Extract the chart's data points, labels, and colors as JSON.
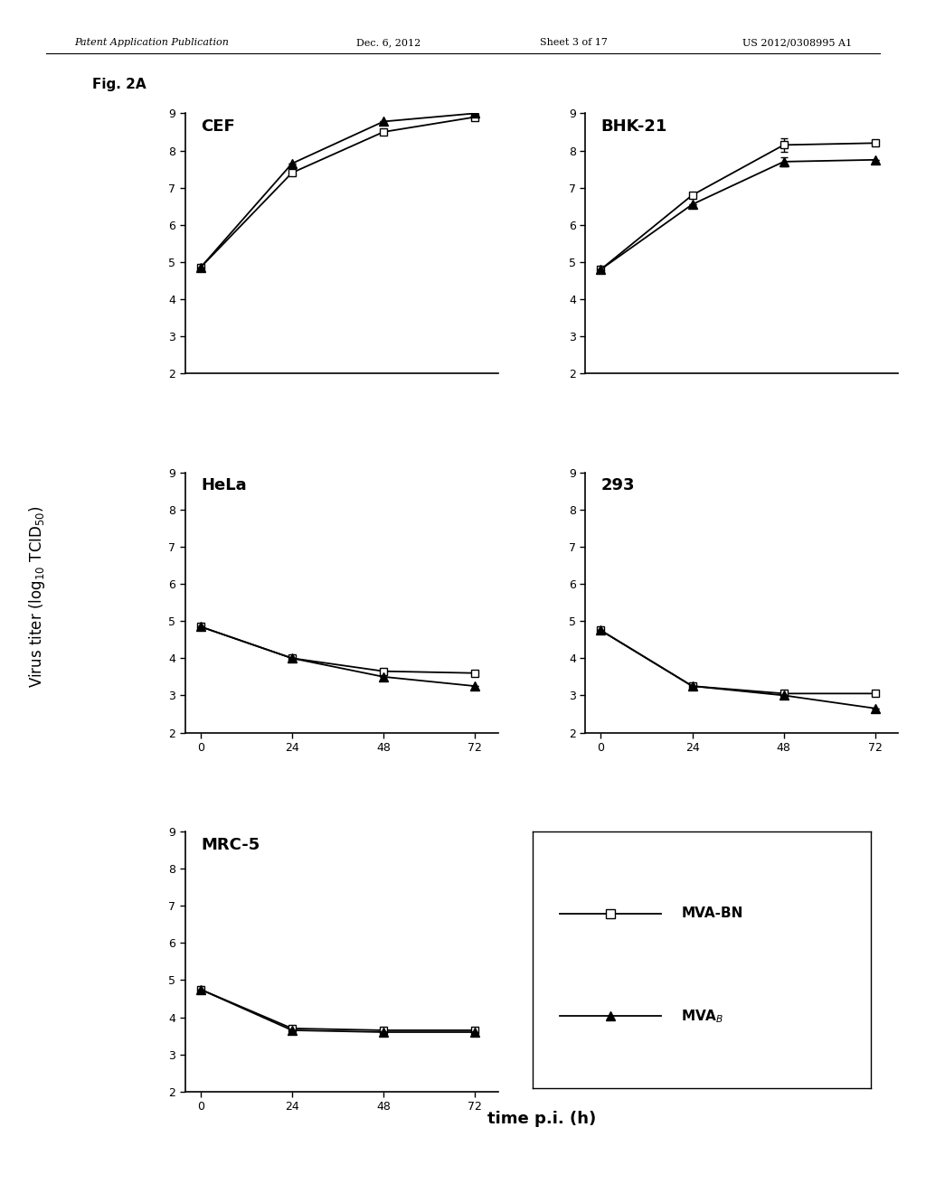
{
  "fig_label": "Fig. 2A",
  "xlabel": "time p.i. (h)",
  "ylabel_line1": "Virus titer (log",
  "ylabel_sub": "10",
  "ylabel_line2": " TCID",
  "ylabel_sub2": "50",
  "ylabel_line3": ")",
  "x": [
    0,
    24,
    48,
    72
  ],
  "ylim": [
    2,
    9
  ],
  "yticks": [
    2,
    3,
    4,
    5,
    6,
    7,
    8,
    9
  ],
  "xticks": [
    0,
    24,
    48,
    72
  ],
  "panels": [
    {
      "title": "CEF",
      "mva_bn": [
        4.85,
        7.4,
        8.5,
        8.9
      ],
      "mva_b": [
        4.85,
        7.65,
        8.78,
        9.0
      ],
      "mva_bn_err": [
        0.0,
        0.0,
        0.0,
        0.0
      ],
      "mva_b_err": [
        0.0,
        0.0,
        0.0,
        0.0
      ]
    },
    {
      "title": "BHK-21",
      "mva_bn": [
        4.8,
        6.8,
        8.15,
        8.2
      ],
      "mva_b": [
        4.8,
        6.55,
        7.7,
        7.75
      ],
      "mva_bn_err": [
        0.0,
        0.0,
        0.18,
        0.0
      ],
      "mva_b_err": [
        0.0,
        0.0,
        0.12,
        0.0
      ]
    },
    {
      "title": "HeLa",
      "mva_bn": [
        4.85,
        4.0,
        3.65,
        3.6
      ],
      "mva_b": [
        4.85,
        4.0,
        3.5,
        3.25
      ],
      "mva_bn_err": [
        0.0,
        0.0,
        0.0,
        0.0
      ],
      "mva_b_err": [
        0.0,
        0.0,
        0.0,
        0.0
      ]
    },
    {
      "title": "293",
      "mva_bn": [
        4.75,
        3.25,
        3.05,
        3.05
      ],
      "mva_b": [
        4.75,
        3.25,
        3.0,
        2.65
      ],
      "mva_bn_err": [
        0.0,
        0.0,
        0.0,
        0.0
      ],
      "mva_b_err": [
        0.0,
        0.0,
        0.0,
        0.0
      ]
    },
    {
      "title": "MRC-5",
      "mva_bn": [
        4.75,
        3.7,
        3.65,
        3.65
      ],
      "mva_b": [
        4.75,
        3.65,
        3.6,
        3.6
      ],
      "mva_bn_err": [
        0.0,
        0.0,
        0.0,
        0.0
      ],
      "mva_b_err": [
        0.0,
        0.0,
        0.0,
        0.0
      ]
    }
  ],
  "legend_mva_bn": "MVA-BN",
  "legend_mva_b": "MVA",
  "color": "#000000",
  "background": "#ffffff",
  "header_left": "Patent Application Publication",
  "header_mid": "Dec. 6, 2012",
  "header_sheet": "Sheet 3 of 17",
  "header_right": "US 2012/0308995 A1"
}
